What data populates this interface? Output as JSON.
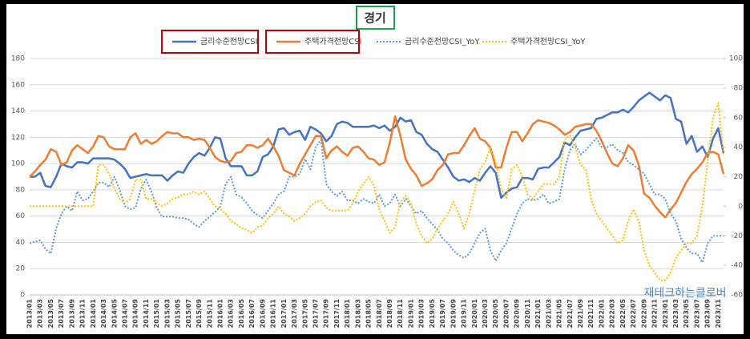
{
  "chart_data": {
    "type": "line",
    "title": "경기",
    "watermark": "재테크하는클로버",
    "categories": [
      "2013/01",
      null,
      "2013/03",
      null,
      "2013/05",
      null,
      "2013/07",
      null,
      "2013/09",
      null,
      "2013/11",
      null,
      "2014/01",
      null,
      "2014/03",
      null,
      "2014/05",
      null,
      "2014/07",
      null,
      "2014/09",
      null,
      "2014/11",
      null,
      "2015/01",
      null,
      "2015/03",
      null,
      "2015/05",
      null,
      "2015/07",
      null,
      "2015/09",
      null,
      "2015/11",
      null,
      "2016/01",
      null,
      "2016/03",
      null,
      "2016/05",
      null,
      "2016/07",
      null,
      "2016/09",
      null,
      "2016/11",
      null,
      "2017/01",
      null,
      "2017/03",
      null,
      "2017/05",
      null,
      "2017/07",
      null,
      "2017/09",
      null,
      "2017/11",
      null,
      "2018/01",
      null,
      "2018/03",
      null,
      "2018/05",
      null,
      "2018/07",
      null,
      "2018/09",
      null,
      "2018/11",
      null,
      "2019/01",
      null,
      "2019/03",
      null,
      "2019/05",
      null,
      "2019/07",
      null,
      "2019/09",
      null,
      "2019/11",
      null,
      "2020/01",
      null,
      "2020/03",
      null,
      "2020/05",
      null,
      "2020/07",
      null,
      "2020/09",
      null,
      "2020/11",
      null,
      "2021/01",
      null,
      "2021/03",
      null,
      "2021/05",
      null,
      "2021/07",
      null,
      "2021/09",
      null,
      "2021/11",
      null,
      "2022/01",
      null,
      "2022/03",
      null,
      "2022/05",
      null,
      "2022/07",
      null,
      "2022/09",
      null,
      "2022/11",
      null,
      "2023/01",
      null,
      "2023/03",
      null,
      "2023/05",
      null,
      "2023/07",
      null,
      "2023/09",
      null,
      "2023/11",
      null
    ],
    "series": [
      {
        "name": "금리수준전망CSI",
        "color": "#4472c4",
        "dash": false,
        "values": [
          90,
          90,
          93,
          83,
          82,
          90,
          100,
          98,
          97,
          101,
          101,
          100,
          104,
          104,
          104,
          104,
          103,
          100,
          96,
          89,
          90,
          91,
          92,
          91,
          91,
          91,
          87,
          91,
          94,
          93,
          100,
          105,
          108,
          106,
          112,
          120,
          119,
          104,
          98,
          98,
          98,
          91,
          91,
          94,
          105,
          107,
          113,
          126,
          127,
          122,
          124,
          125,
          118,
          128,
          126,
          123,
          117,
          121,
          130,
          132,
          131,
          128,
          128,
          128,
          128,
          129,
          127,
          129,
          125,
          128,
          135,
          132,
          133,
          124,
          122,
          115,
          111,
          109,
          103,
          97,
          90,
          87,
          88,
          86,
          89,
          87,
          93,
          98,
          93,
          74,
          78,
          81,
          82,
          89,
          89,
          88,
          96,
          97,
          97,
          101,
          105,
          116,
          114,
          120,
          125,
          126,
          127,
          134,
          135,
          137,
          139,
          139,
          141,
          139,
          143,
          148,
          151,
          154,
          151,
          148,
          152,
          150,
          134,
          132,
          115,
          121,
          109,
          113,
          105,
          119,
          127,
          108
        ]
      },
      {
        "name": "주택가격전망CSI",
        "color": "#ed7d31",
        "dash": false,
        "values": [
          90,
          94,
          99,
          103,
          111,
          109,
          99,
          101,
          110,
          114,
          111,
          108,
          113,
          121,
          120,
          113,
          111,
          111,
          111,
          120,
          123,
          115,
          118,
          115,
          117,
          121,
          124,
          123,
          123,
          120,
          120,
          118,
          119,
          118,
          112,
          105,
          102,
          101,
          102,
          108,
          109,
          114,
          114,
          112,
          114,
          119,
          113,
          106,
          95,
          93,
          91,
          100,
          107,
          114,
          121,
          121,
          104,
          110,
          113,
          109,
          106,
          112,
          113,
          109,
          104,
          103,
          99,
          101,
          116,
          136,
          121,
          103,
          96,
          91,
          83,
          85,
          88,
          95,
          99,
          107,
          108,
          108,
          114,
          121,
          127,
          119,
          117,
          112,
          97,
          97,
          112,
          124,
          124,
          117,
          123,
          130,
          133,
          132,
          131,
          129,
          126,
          122,
          124,
          128,
          129,
          130,
          130,
          125,
          117,
          108,
          100,
          98,
          104,
          114,
          110,
          99,
          77,
          74,
          68,
          63,
          59,
          65,
          70,
          78,
          86,
          92,
          96,
          101,
          108,
          109,
          107,
          92
        ]
      },
      {
        "name": "금리수준전망CSI_YoY",
        "color": "#5b9bd5",
        "dash": true,
        "axis": "y2",
        "values": [
          -25,
          -24,
          -23,
          -29,
          -32,
          -15,
          -5,
          0,
          -3,
          10,
          4,
          5,
          10,
          16,
          16,
          13,
          20,
          11,
          0,
          -2,
          -1,
          12,
          18,
          10,
          -1,
          -7,
          -7,
          -7,
          -8,
          -8,
          -9,
          -12,
          -14,
          -10,
          -7,
          -4,
          0,
          15,
          20,
          8,
          6,
          2,
          -3,
          -6,
          -8,
          -3,
          2,
          8,
          10,
          20,
          20,
          22,
          32,
          25,
          40,
          45,
          15,
          10,
          7,
          10,
          4,
          4,
          2,
          5,
          3,
          2,
          8,
          0,
          2,
          8,
          0,
          5,
          0,
          -5,
          -3,
          -8,
          -12,
          -16,
          -22,
          -25,
          -30,
          -33,
          -35,
          -32,
          -25,
          -18,
          -15,
          -30,
          -37,
          -30,
          -25,
          -15,
          -5,
          2,
          5,
          4,
          5,
          8,
          2,
          3,
          5,
          25,
          38,
          42,
          35,
          38,
          42,
          46,
          40,
          40,
          42,
          38,
          36,
          30,
          28,
          25,
          22,
          15,
          8,
          8,
          5,
          -5,
          -10,
          -22,
          -28,
          -32,
          -32,
          -38,
          -25,
          -20,
          -20,
          -20
        ]
      },
      {
        "name": "주택가격전망CSI_YoY",
        "color": "#ffc000",
        "dash": true,
        "axis": "y2",
        "values": [
          0,
          0,
          0,
          0,
          0,
          0,
          0,
          0,
          0,
          0,
          0,
          0,
          0,
          28,
          28,
          22,
          12,
          5,
          2,
          5,
          18,
          18,
          5,
          5,
          2,
          0,
          2,
          5,
          6,
          8,
          8,
          10,
          8,
          10,
          5,
          0,
          -2,
          -5,
          -10,
          -12,
          -15,
          -16,
          -18,
          -14,
          -13,
          -8,
          -5,
          0,
          -5,
          -7,
          -10,
          -8,
          -5,
          0,
          3,
          4,
          -1,
          -3,
          -3,
          -3,
          -3,
          2,
          10,
          15,
          20,
          14,
          -2,
          -10,
          -18,
          -14,
          3,
          7,
          2,
          -12,
          -20,
          -25,
          -22,
          -15,
          -10,
          -5,
          3,
          -5,
          -15,
          -5,
          10,
          25,
          30,
          40,
          30,
          12,
          5,
          25,
          28,
          20,
          8,
          5,
          10,
          15,
          15,
          15,
          20,
          45,
          48,
          40,
          28,
          25,
          5,
          -5,
          -10,
          -15,
          -20,
          -25,
          -23,
          -10,
          -2,
          -10,
          -30,
          -40,
          -45,
          -50,
          -50,
          -45,
          -35,
          -30,
          -25,
          -25,
          -20,
          0,
          30,
          60,
          70,
          35
        ]
      }
    ],
    "ylim": [
      0,
      180
    ],
    "yticks": [
      0,
      20,
      40,
      60,
      80,
      100,
      120,
      140,
      160,
      180
    ],
    "y2lim": [
      -60,
      100
    ],
    "y2ticks": [
      -60,
      -40,
      -20,
      0,
      20,
      40,
      60,
      80,
      100
    ],
    "grid": true
  }
}
